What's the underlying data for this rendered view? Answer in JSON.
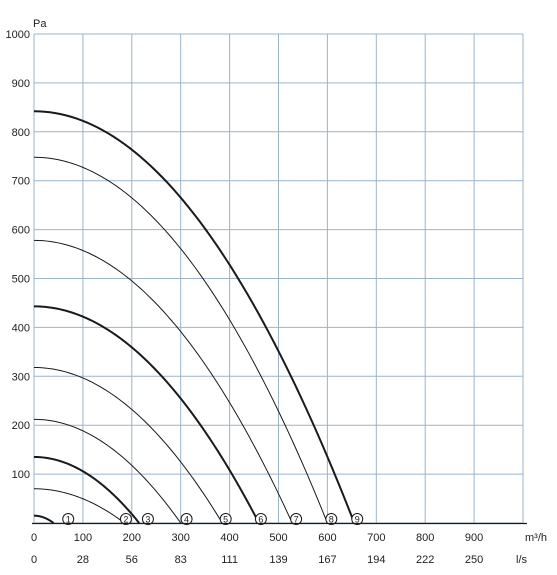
{
  "chart_data": {
    "type": "line",
    "y_unit": "Pa",
    "x_unit_primary": "m³/h",
    "x_unit_secondary": "l/s",
    "xlim": [
      0,
      1000
    ],
    "ylim": [
      0,
      1000
    ],
    "x_ticks": [
      0,
      100,
      200,
      300,
      400,
      500,
      600,
      700,
      800,
      900
    ],
    "x_tick_labels": [
      "0",
      "100",
      "200",
      "300",
      "400",
      "500",
      "600",
      "700",
      "800",
      "900"
    ],
    "x_secondary_tick_labels": [
      "0",
      "28",
      "56",
      "83",
      "111",
      "139",
      "167",
      "194",
      "222",
      "250"
    ],
    "y_ticks": [
      100,
      200,
      300,
      400,
      500,
      600,
      700,
      800,
      900,
      1000
    ],
    "y_tick_labels": [
      "100",
      "200",
      "300",
      "400",
      "500",
      "600",
      "700",
      "800",
      "900",
      "1000"
    ],
    "grid": true,
    "series": [
      {
        "name": "1",
        "emphasis": "bold",
        "max_pressure": 15,
        "max_flow": 40
      },
      {
        "name": "2",
        "emphasis": "normal",
        "max_pressure": 70,
        "max_flow": 185
      },
      {
        "name": "3",
        "emphasis": "bold",
        "max_pressure": 135,
        "max_flow": 215
      },
      {
        "name": "4",
        "emphasis": "normal",
        "max_pressure": 212,
        "max_flow": 300
      },
      {
        "name": "5",
        "emphasis": "normal",
        "max_pressure": 318,
        "max_flow": 385
      },
      {
        "name": "6",
        "emphasis": "bold",
        "max_pressure": 443,
        "max_flow": 460
      },
      {
        "name": "7",
        "emphasis": "normal",
        "max_pressure": 578,
        "max_flow": 528
      },
      {
        "name": "8",
        "emphasis": "normal",
        "max_pressure": 748,
        "max_flow": 600
      },
      {
        "name": "9",
        "emphasis": "bold",
        "max_pressure": 842,
        "max_flow": 655
      }
    ],
    "curve_label_positions": [
      70,
      188,
      233,
      312,
      392,
      464,
      536,
      608,
      661
    ],
    "colors": {
      "grid": "#9ab4cc",
      "curve": "#1a1a1a",
      "axis": "#1a1a1a"
    }
  }
}
